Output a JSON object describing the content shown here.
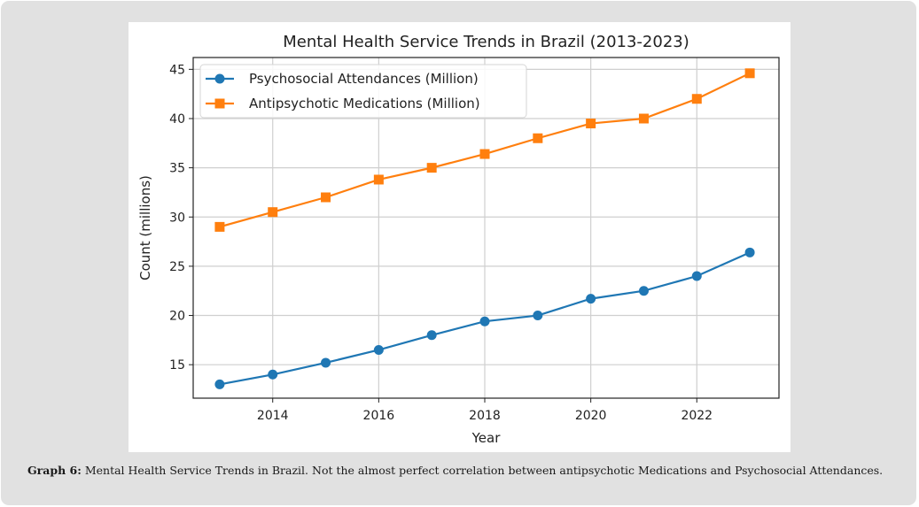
{
  "caption": {
    "label": "Graph 6:",
    "text": " Mental Health Service Trends in Brazil. Not the almost perfect correlation between antipsychotic Medications and Psychosocial Attendances."
  },
  "chart_data": {
    "type": "line",
    "title": "Mental Health Service Trends in Brazil (2013-2023)",
    "xlabel": "Year",
    "ylabel": "Count (millions)",
    "x": [
      2013,
      2014,
      2015,
      2016,
      2017,
      2018,
      2019,
      2020,
      2021,
      2022,
      2023
    ],
    "xticks": [
      2014,
      2016,
      2018,
      2020,
      2022
    ],
    "yticks": [
      15,
      20,
      25,
      30,
      35,
      40,
      45
    ],
    "xlim": [
      2012.5,
      2023.55
    ],
    "ylim": [
      11.6,
      46.2
    ],
    "grid": true,
    "legend_position": "top-left",
    "series": [
      {
        "name": "Psychosocial Attendances (Million)",
        "color": "#1f77b4",
        "marker": "circle",
        "values": [
          13.0,
          14.0,
          15.2,
          16.5,
          18.0,
          19.4,
          20.0,
          21.7,
          22.5,
          24.0,
          26.4
        ]
      },
      {
        "name": "Antipsychotic Medications (Million)",
        "color": "#ff7f0e",
        "marker": "square",
        "values": [
          29.0,
          30.5,
          32.0,
          33.8,
          35.0,
          36.4,
          38.0,
          39.5,
          40.0,
          42.0,
          44.6
        ]
      }
    ]
  }
}
